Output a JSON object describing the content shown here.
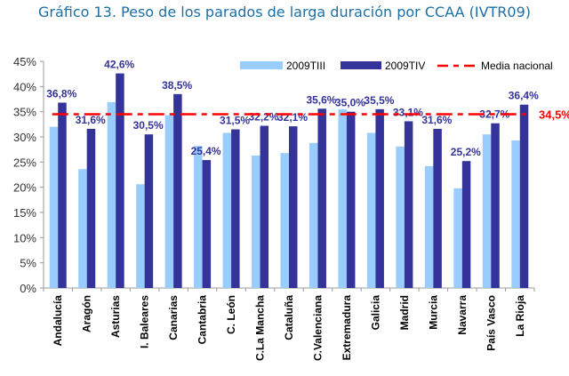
{
  "chart_data": {
    "type": "bar",
    "title": "Gráfico 13. Peso de los parados de larga duración por CCAA (IVTR09)",
    "categories": [
      "Andalucía",
      "Aragón",
      "Asturias",
      "I. Baleares",
      "Canarias",
      "Cantabria",
      "C. León",
      "C.La Mancha",
      "Cataluña",
      "C.Valenciana",
      "Extremadura",
      "Galicia",
      "Madrid",
      "Murcia",
      "Navarra",
      "País Vasco",
      "La Rioja"
    ],
    "series": [
      {
        "name": "2009TIII",
        "color": "#99ccff",
        "values": [
          32.0,
          23.6,
          36.9,
          20.6,
          34.3,
          28.2,
          30.8,
          26.3,
          26.8,
          28.8,
          35.5,
          30.8,
          28.1,
          24.2,
          19.8,
          30.5,
          29.3
        ]
      },
      {
        "name": "2009TIV",
        "color": "#333399",
        "values": [
          36.8,
          31.6,
          42.6,
          30.5,
          38.5,
          25.4,
          31.5,
          32.2,
          32.1,
          35.6,
          35.0,
          35.5,
          33.1,
          31.6,
          25.2,
          32.7,
          36.4
        ],
        "labels": [
          "36,8%",
          "31,6%",
          "42,6%",
          "30,5%",
          "38,5%",
          "25,4%",
          "31,5%",
          "32,2%",
          "32,1%",
          "35,6%",
          "35,0%",
          "35,5%",
          "33,1%",
          "31,6%",
          "25,2%",
          "32,7%",
          "36,4%"
        ]
      }
    ],
    "reference_line": {
      "name": "Media nacional",
      "value": 34.5,
      "label": "34,5%",
      "color": "#ff0000",
      "style": "dash-dot"
    },
    "ylim": [
      0,
      45
    ],
    "yticks": [
      "0%",
      "5%",
      "10%",
      "15%",
      "20%",
      "25%",
      "30%",
      "35%",
      "40%",
      "45%"
    ],
    "grid": false,
    "legend": "top-right"
  }
}
